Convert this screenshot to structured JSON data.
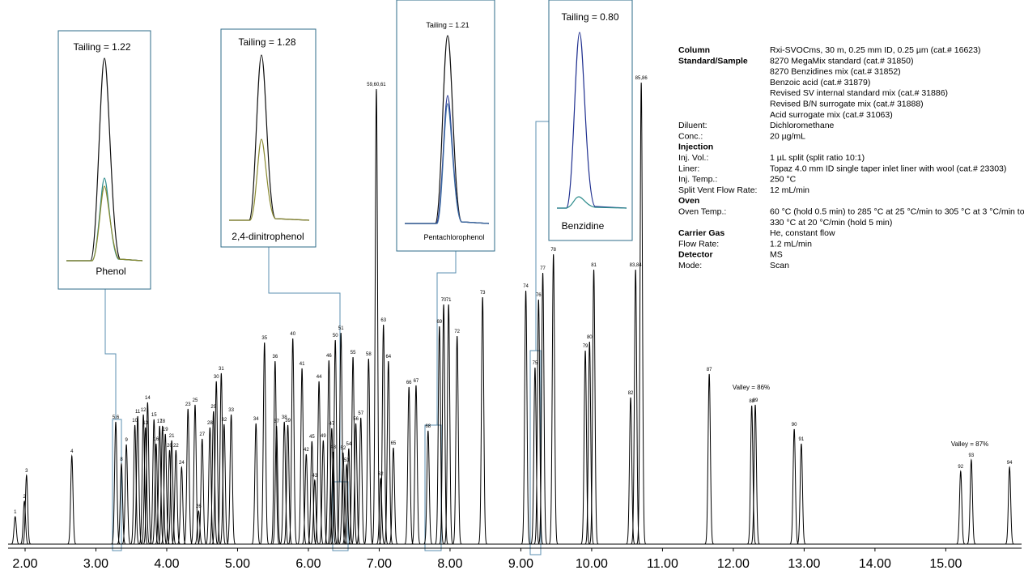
{
  "chart_data": {
    "type": "chromatogram",
    "xlim": [
      1.76,
      16.07
    ],
    "xticks": [
      {
        "value": 2,
        "label": "2.00"
      },
      {
        "value": 3,
        "label": "3.00"
      },
      {
        "value": 4,
        "label": "4.00"
      },
      {
        "value": 5,
        "label": "5.00"
      },
      {
        "value": 6,
        "label": "6.00"
      },
      {
        "value": 7,
        "label": "7.00"
      },
      {
        "value": 8,
        "label": "8.00"
      },
      {
        "value": 9,
        "label": "9.00"
      },
      {
        "value": 10,
        "label": "10.00"
      },
      {
        "value": 11,
        "label": "11.00"
      },
      {
        "value": 12,
        "label": "12.00"
      },
      {
        "value": 13,
        "label": "13.00"
      },
      {
        "value": 14,
        "label": "14.00"
      },
      {
        "value": 15,
        "label": "15.00"
      }
    ],
    "color": "#000000",
    "peaks": [
      {
        "label": "1",
        "rt": 1.86,
        "height": 34
      },
      {
        "label": "2",
        "rt": 1.99,
        "height": 53
      },
      {
        "label": "3",
        "rt": 2.02,
        "height": 85
      },
      {
        "label": "4",
        "rt": 2.66,
        "height": 109
      },
      {
        "label": "5,6",
        "rt": 3.28,
        "height": 151
      },
      {
        "label": "8",
        "rt": 3.36,
        "height": 99
      },
      {
        "label": "9",
        "rt": 3.43,
        "height": 123
      },
      {
        "label": "10",
        "rt": 3.55,
        "height": 147
      },
      {
        "label": "11",
        "rt": 3.59,
        "height": 158
      },
      {
        "label": "12",
        "rt": 3.67,
        "height": 160
      },
      {
        "label": "13",
        "rt": 3.7,
        "height": 144
      },
      {
        "label": "14",
        "rt": 3.73,
        "height": 175
      },
      {
        "label": "15",
        "rt": 3.82,
        "height": 154
      },
      {
        "label": "16",
        "rt": 3.85,
        "height": 124
      },
      {
        "label": "17",
        "rt": 3.9,
        "height": 146
      },
      {
        "label": "18",
        "rt": 3.94,
        "height": 146
      },
      {
        "label": "19",
        "rt": 3.98,
        "height": 136
      },
      {
        "label": "20",
        "rt": 4.04,
        "height": 116
      },
      {
        "label": "21",
        "rt": 4.07,
        "height": 128
      },
      {
        "label": "22",
        "rt": 4.13,
        "height": 116
      },
      {
        "label": "24",
        "rt": 4.21,
        "height": 95
      },
      {
        "label": "23",
        "rt": 4.3,
        "height": 167
      },
      {
        "label": "25",
        "rt": 4.4,
        "height": 172
      },
      {
        "label": "26",
        "rt": 4.45,
        "height": 41
      },
      {
        "label": "27",
        "rt": 4.5,
        "height": 130
      },
      {
        "label": "28",
        "rt": 4.61,
        "height": 144
      },
      {
        "label": "29",
        "rt": 4.66,
        "height": 164
      },
      {
        "label": "30",
        "rt": 4.7,
        "height": 201
      },
      {
        "label": "31",
        "rt": 4.77,
        "height": 211
      },
      {
        "label": "32",
        "rt": 4.81,
        "height": 148
      },
      {
        "label": "33",
        "rt": 4.91,
        "height": 160
      },
      {
        "label": "34",
        "rt": 5.26,
        "height": 149
      },
      {
        "label": "35",
        "rt": 5.38,
        "height": 249
      },
      {
        "label": "36",
        "rt": 5.53,
        "height": 226
      },
      {
        "label": "37",
        "rt": 5.55,
        "height": 146
      },
      {
        "label": "38",
        "rt": 5.66,
        "height": 151
      },
      {
        "label": "39",
        "rt": 5.71,
        "height": 147
      },
      {
        "label": "40",
        "rt": 5.78,
        "height": 254
      },
      {
        "label": "41",
        "rt": 5.91,
        "height": 217
      },
      {
        "label": "42",
        "rt": 5.97,
        "height": 111
      },
      {
        "label": "45",
        "rt": 6.05,
        "height": 127
      },
      {
        "label": "43",
        "rt": 6.09,
        "height": 79
      },
      {
        "label": "44",
        "rt": 6.15,
        "height": 201
      },
      {
        "label": "49",
        "rt": 6.21,
        "height": 128
      },
      {
        "label": "46",
        "rt": 6.29,
        "height": 227
      },
      {
        "label": "47",
        "rt": 6.33,
        "height": 143
      },
      {
        "label": "48",
        "rt": 6.35,
        "height": 114
      },
      {
        "label": "50",
        "rt": 6.38,
        "height": 252
      },
      {
        "label": "51",
        "rt": 6.46,
        "height": 261
      },
      {
        "label": "52",
        "rt": 6.49,
        "height": 113
      },
      {
        "label": "53",
        "rt": 6.54,
        "height": 98
      },
      {
        "label": "54",
        "rt": 6.57,
        "height": 118
      },
      {
        "label": "55",
        "rt": 6.63,
        "height": 231
      },
      {
        "label": "56",
        "rt": 6.67,
        "height": 149
      },
      {
        "label": "57",
        "rt": 6.74,
        "height": 156
      },
      {
        "label": "58",
        "rt": 6.85,
        "height": 229
      },
      {
        "label": "59,60,61",
        "rt": 6.96,
        "height": 562
      },
      {
        "label": "62",
        "rt": 7.02,
        "height": 81
      },
      {
        "label": "63",
        "rt": 7.06,
        "height": 271
      },
      {
        "label": "64",
        "rt": 7.13,
        "height": 226
      },
      {
        "label": "65",
        "rt": 7.2,
        "height": 119
      },
      {
        "label": "66",
        "rt": 7.42,
        "height": 194
      },
      {
        "label": "67",
        "rt": 7.52,
        "height": 196
      },
      {
        "label": "68",
        "rt": 7.69,
        "height": 140
      },
      {
        "label": "69",
        "rt": 7.85,
        "height": 269
      },
      {
        "label": "70",
        "rt": 7.91,
        "height": 296
      },
      {
        "label": "71",
        "rt": 7.98,
        "height": 296
      },
      {
        "label": "72",
        "rt": 8.1,
        "height": 257
      },
      {
        "label": "73",
        "rt": 8.46,
        "height": 305
      },
      {
        "label": "74",
        "rt": 9.07,
        "height": 313
      },
      {
        "label": "75",
        "rt": 9.2,
        "height": 218
      },
      {
        "label": "76",
        "rt": 9.25,
        "height": 302
      },
      {
        "label": "77",
        "rt": 9.31,
        "height": 335
      },
      {
        "label": "78",
        "rt": 9.46,
        "height": 358
      },
      {
        "label": "79",
        "rt": 9.91,
        "height": 239
      },
      {
        "label": "80",
        "rt": 9.97,
        "height": 250
      },
      {
        "label": "81",
        "rt": 10.03,
        "height": 339
      },
      {
        "label": "82",
        "rt": 10.55,
        "height": 181
      },
      {
        "label": "83,84",
        "rt": 10.62,
        "height": 339
      },
      {
        "label": "85,86",
        "rt": 10.7,
        "height": 570
      },
      {
        "label": "87",
        "rt": 11.66,
        "height": 210
      },
      {
        "label": "88",
        "rt": 12.26,
        "height": 171
      },
      {
        "label": "89",
        "rt": 12.31,
        "height": 172
      },
      {
        "label": "90",
        "rt": 12.86,
        "height": 142
      },
      {
        "label": "91",
        "rt": 12.96,
        "height": 124
      },
      {
        "label": "92",
        "rt": 15.21,
        "height": 90
      },
      {
        "label": "93",
        "rt": 15.36,
        "height": 104
      },
      {
        "label": "94",
        "rt": 15.9,
        "height": 95
      }
    ],
    "annotations": [
      "Valley = 86%",
      "Valley = 87%"
    ],
    "insets": [
      {
        "tailing": "Tailing =  1.22",
        "compound": "Phenol"
      },
      {
        "tailing": "Tailing =  1.28",
        "compound": "2,4-dinitrophenol"
      },
      {
        "tailing": "Tailing =  1.21",
        "compound": "Pentachlorophenol"
      },
      {
        "tailing": "Tailing =  0.80",
        "compound": "Benzidine"
      }
    ],
    "conditions": [
      {
        "key": "Column",
        "bold": true,
        "lines": [
          "Rxi-SVOCms, 30 m, 0.25 mm ID, 0.25 µm (cat.# 16623)"
        ]
      },
      {
        "key": "Standard/Sample",
        "bold": true,
        "lines": [
          "8270 MegaMix standard (cat.# 31850)",
          "8270 Benzidines mix (cat.# 31852)",
          "Benzoic acid (cat.# 31879)",
          "Revised SV internal standard mix (cat.# 31886)",
          "Revised B/N surrogate mix (cat.# 31888)",
          "Acid surrogate mix (cat.# 31063)"
        ]
      },
      {
        "key": "Diluent:",
        "bold": false,
        "lines": [
          "Dichloromethane"
        ]
      },
      {
        "key": "Conc.:",
        "bold": false,
        "lines": [
          "20 µg/mL"
        ]
      },
      {
        "key": "Injection",
        "bold": true,
        "lines": []
      },
      {
        "key": "Inj. Vol.:",
        "bold": false,
        "lines": [
          "1 µL split (split ratio 10:1)"
        ]
      },
      {
        "key": "Liner:",
        "bold": false,
        "lines": [
          "Topaz 4.0 mm ID single taper inlet liner with wool (cat.# 23303)"
        ]
      },
      {
        "key": "Inj. Temp.:",
        "bold": false,
        "lines": [
          "250 °C"
        ]
      },
      {
        "key": "Split Vent Flow Rate:",
        "bold": false,
        "lines": [
          "12 mL/min"
        ]
      },
      {
        "key": "Oven",
        "bold": true,
        "lines": []
      },
      {
        "key": "Oven Temp.:",
        "bold": false,
        "lines": [
          "60 °C (hold 0.5 min) to 285 °C at 25 °C/min to 305 °C at 3 °C/min to",
          "330 °C at 20 °C/min (hold 5 min)"
        ]
      },
      {
        "key": "Carrier Gas",
        "bold": true,
        "lines": [
          "He, constant flow"
        ]
      },
      {
        "key": "Flow Rate:",
        "bold": false,
        "lines": [
          "1.2 mL/min"
        ]
      },
      {
        "key": "Detector",
        "bold": true,
        "lines": [
          "MS"
        ]
      },
      {
        "key": "Mode:",
        "bold": false,
        "lines": [
          "Scan"
        ]
      }
    ]
  }
}
